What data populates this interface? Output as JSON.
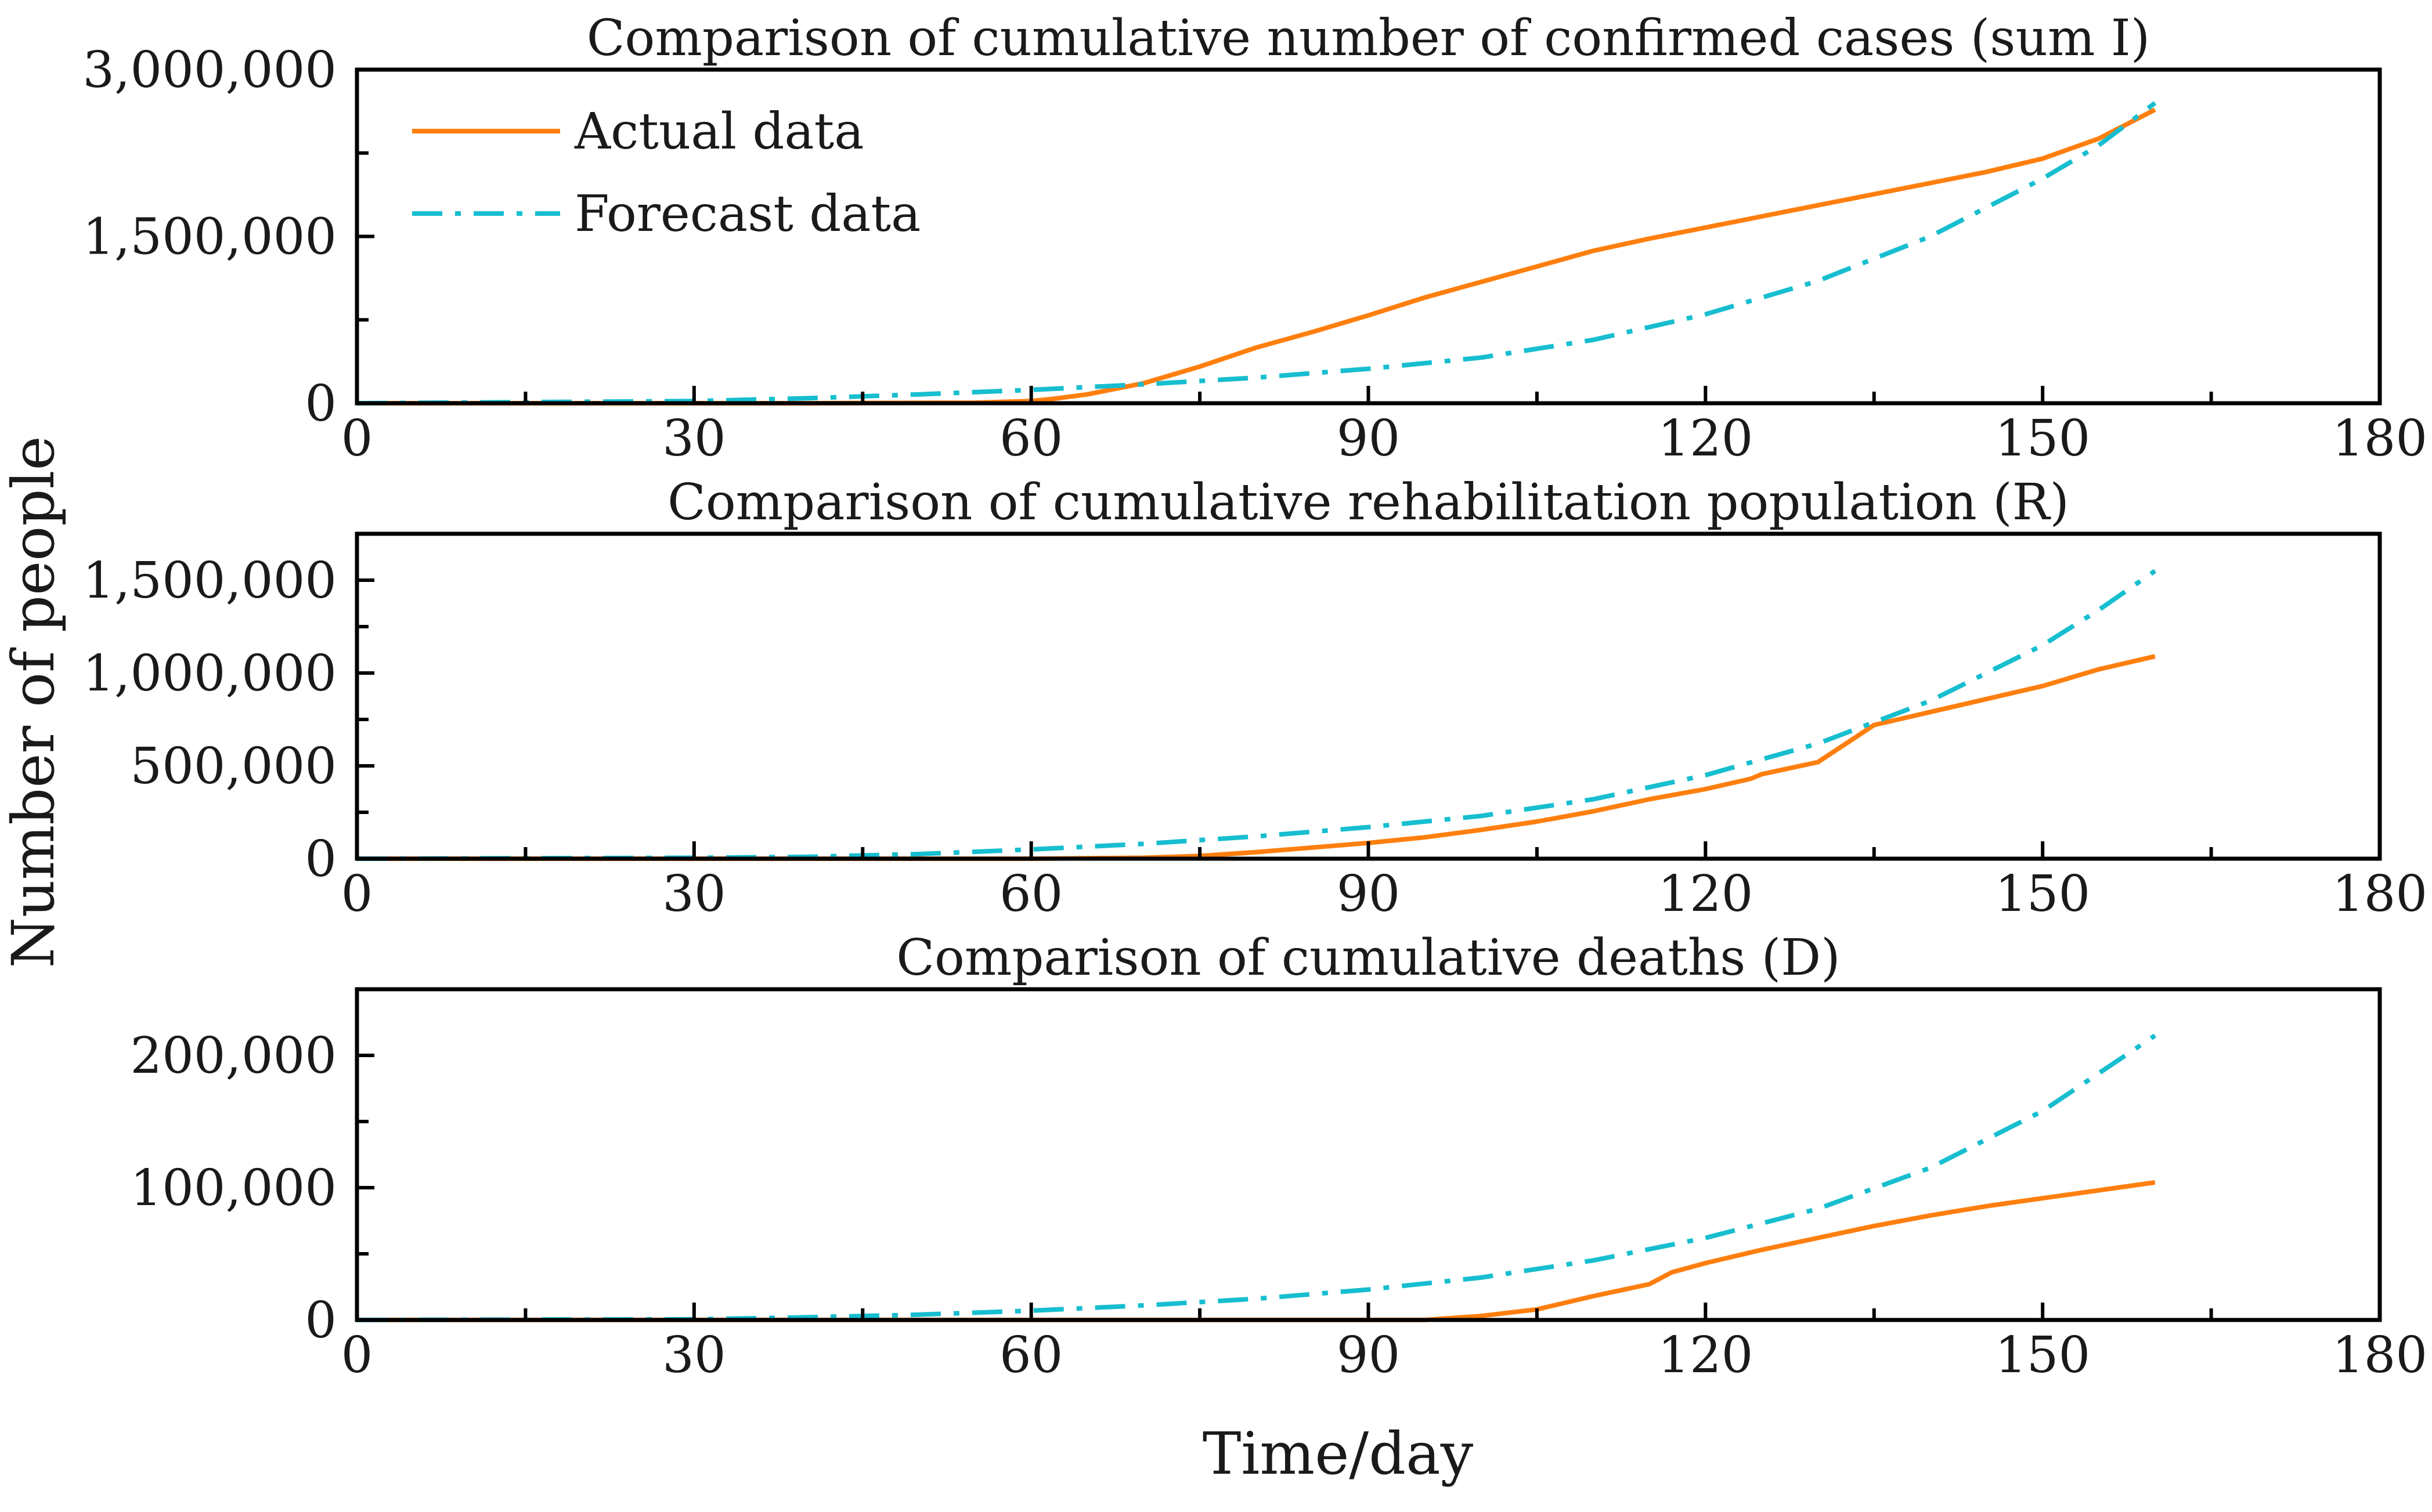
{
  "figure": {
    "ylabel": "Number of people",
    "xlabel": "Time/day"
  },
  "legend": {
    "actual": "Actual data",
    "forecast": "Forecast data"
  },
  "colors": {
    "actual": "#ff7f0e",
    "forecast": "#17becf"
  },
  "chart_data": [
    {
      "type": "line",
      "title": "Comparison of cumulative number of confirmed cases (sum I)",
      "xlabel": "Time/day",
      "ylabel": "Number of people",
      "xlim": [
        0,
        180
      ],
      "ylim": [
        0,
        3000000
      ],
      "xticks": [
        0,
        30,
        60,
        90,
        120,
        150,
        180
      ],
      "xtick_labels": [
        "0",
        "30",
        "60",
        "90",
        "120",
        "150",
        "180"
      ],
      "yticks": [
        0,
        1500000,
        3000000
      ],
      "ytick_labels": [
        "0",
        "1,500,000",
        "3,000,000"
      ],
      "yminor": [
        750000,
        2250000
      ],
      "legend": "top-left",
      "series": [
        {
          "name": "Actual data",
          "style": "solid",
          "color": "#ff7f0e",
          "x": [
            0,
            40,
            55,
            60,
            62,
            65,
            70,
            75,
            80,
            85,
            90,
            95,
            100,
            105,
            110,
            115,
            120,
            125,
            130,
            135,
            140,
            145,
            150,
            155,
            160
          ],
          "y": [
            0,
            0,
            5000,
            20000,
            40000,
            80000,
            180000,
            330000,
            500000,
            640000,
            790000,
            950000,
            1090000,
            1230000,
            1370000,
            1480000,
            1580000,
            1680000,
            1780000,
            1880000,
            1980000,
            2080000,
            2200000,
            2380000,
            2640000
          ]
        },
        {
          "name": "Forecast data",
          "style": "dashdot",
          "color": "#17becf",
          "x": [
            0,
            30,
            40,
            50,
            60,
            70,
            80,
            90,
            100,
            110,
            120,
            130,
            140,
            150,
            155,
            160
          ],
          "y": [
            0,
            20000,
            45000,
            80000,
            120000,
            170000,
            230000,
            310000,
            410000,
            570000,
            800000,
            1100000,
            1500000,
            2020000,
            2320000,
            2700000
          ]
        }
      ]
    },
    {
      "type": "line",
      "title": "Comparison of cumulative rehabilitation population (R)",
      "xlabel": "Time/day",
      "ylabel": "Number of people",
      "xlim": [
        0,
        180
      ],
      "ylim": [
        0,
        1750000
      ],
      "xticks": [
        0,
        30,
        60,
        90,
        120,
        150,
        180
      ],
      "xtick_labels": [
        "0",
        "30",
        "60",
        "90",
        "120",
        "150",
        "180"
      ],
      "yticks": [
        0,
        500000,
        1000000,
        1500000
      ],
      "ytick_labels": [
        "0",
        "500,000",
        "1,000,000",
        "1,500,000"
      ],
      "yminor": [
        250000,
        750000,
        1250000
      ],
      "series": [
        {
          "name": "Actual data",
          "style": "solid",
          "color": "#ff7f0e",
          "x": [
            0,
            60,
            70,
            75,
            80,
            85,
            90,
            95,
            100,
            105,
            110,
            115,
            120,
            124,
            125,
            130,
            132,
            135,
            140,
            145,
            150,
            155,
            160
          ],
          "y": [
            0,
            0,
            5000,
            15000,
            35000,
            60000,
            85000,
            115000,
            155000,
            200000,
            255000,
            320000,
            375000,
            430000,
            455000,
            520000,
            600000,
            720000,
            790000,
            860000,
            930000,
            1020000,
            1090000
          ]
        },
        {
          "name": "Forecast data",
          "style": "dashdot",
          "color": "#17becf",
          "x": [
            0,
            30,
            40,
            50,
            60,
            70,
            80,
            90,
            100,
            110,
            120,
            130,
            140,
            150,
            155,
            160
          ],
          "y": [
            0,
            5000,
            10000,
            25000,
            50000,
            80000,
            120000,
            170000,
            230000,
            320000,
            450000,
            620000,
            850000,
            1150000,
            1340000,
            1550000
          ]
        }
      ]
    },
    {
      "type": "line",
      "title": "Comparison of cumulative deaths (D)",
      "xlabel": "Time/day",
      "ylabel": "Number of people",
      "xlim": [
        0,
        180
      ],
      "ylim": [
        0,
        250000
      ],
      "xticks": [
        0,
        30,
        60,
        90,
        120,
        150,
        180
      ],
      "xtick_labels": [
        "0",
        "30",
        "60",
        "90",
        "120",
        "150",
        "180"
      ],
      "yticks": [
        0,
        100000,
        200000
      ],
      "ytick_labels": [
        "0",
        "100,000",
        "200,000"
      ],
      "yminor": [
        50000,
        150000
      ],
      "series": [
        {
          "name": "Actual data",
          "style": "solid",
          "color": "#ff7f0e",
          "x": [
            0,
            95,
            100,
            105,
            110,
            115,
            117,
            120,
            125,
            130,
            135,
            140,
            145,
            150,
            155,
            160
          ],
          "y": [
            0,
            0,
            3000,
            8000,
            18000,
            27000,
            36000,
            43000,
            53000,
            62000,
            71000,
            79000,
            86000,
            92000,
            98000,
            104000
          ]
        },
        {
          "name": "Forecast data",
          "style": "dashdot",
          "color": "#17becf",
          "x": [
            0,
            30,
            40,
            50,
            60,
            70,
            80,
            90,
            100,
            110,
            120,
            130,
            140,
            150,
            160
          ],
          "y": [
            0,
            500,
            2000,
            4000,
            7000,
            11000,
            16000,
            23000,
            32000,
            45000,
            62000,
            84000,
            115000,
            158000,
            215000
          ]
        }
      ]
    }
  ]
}
